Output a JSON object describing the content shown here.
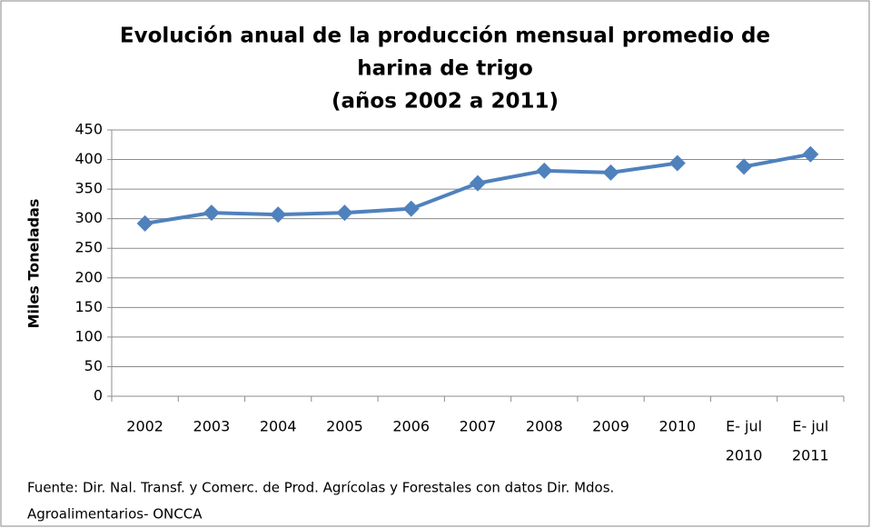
{
  "chart_data": {
    "type": "line",
    "title": [
      "Evolución anual de la producción mensual promedio de",
      "harina de trigo",
      "(años 2002 a 2011)"
    ],
    "ylabel": "Miles Toneladas",
    "categories": [
      "2002",
      "2003",
      "2004",
      "2005",
      "2006",
      "2007",
      "2008",
      "2009",
      "2010",
      [
        "E- jul",
        "2010"
      ],
      [
        "E- jul",
        "2011"
      ]
    ],
    "series": [
      {
        "color": "#4f81bd",
        "values": [
          292,
          310,
          307,
          310,
          317,
          360,
          381,
          378,
          394,
          null,
          null
        ]
      },
      {
        "color": "#4f81bd",
        "values": [
          null,
          null,
          null,
          null,
          null,
          null,
          null,
          null,
          null,
          388,
          409
        ]
      }
    ],
    "ylim": [
      0,
      450
    ],
    "yticks": [
      0,
      50,
      100,
      150,
      200,
      250,
      300,
      350,
      400,
      450
    ],
    "grid": true,
    "source": [
      "Fuente: Dir. Nal. Transf. y Comerc. de Prod. Agrícolas y Forestales con datos Dir. Mdos.",
      "Agroalimentarios- ONCCA"
    ]
  }
}
